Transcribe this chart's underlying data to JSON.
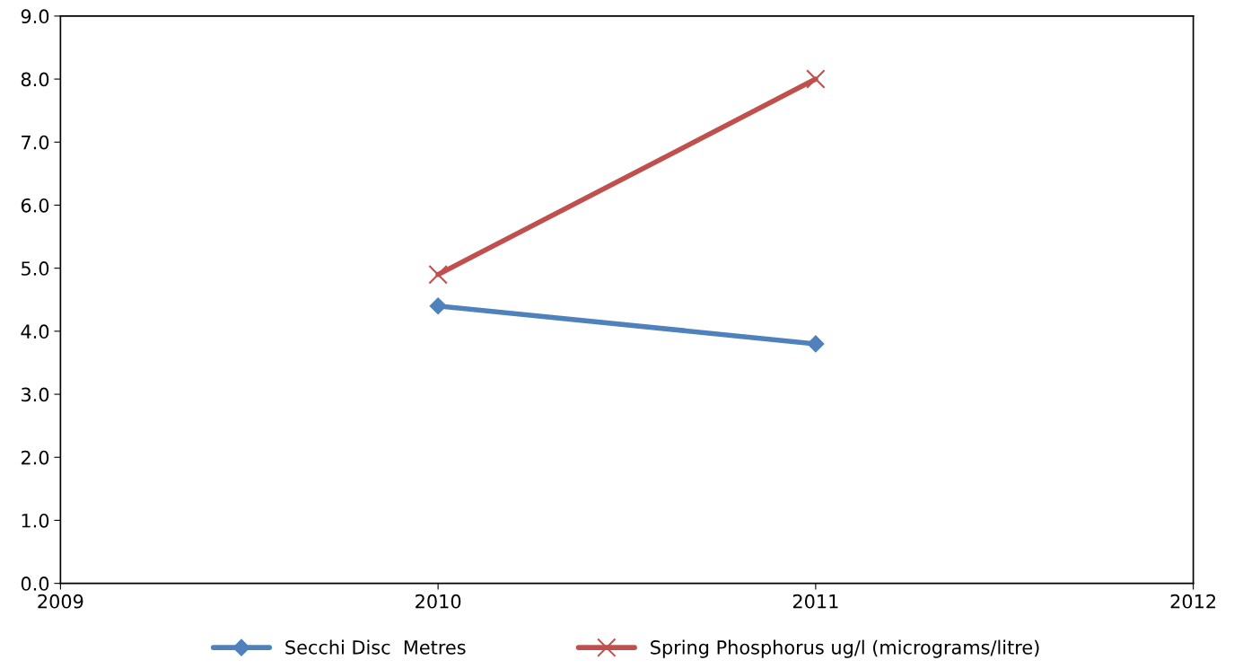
{
  "chart_data": {
    "type": "line",
    "x": [
      2010,
      2011
    ],
    "series": [
      {
        "name": "Secchi Disc  Metres",
        "color": "#4f81bd",
        "values": [
          4.4,
          3.8
        ],
        "marker": "diamond"
      },
      {
        "name": "Spring Phosphorus ug/l (micrograms/litre)",
        "color": "#c0504d",
        "values": [
          4.9,
          8.0
        ],
        "marker": "cross"
      }
    ],
    "xlim": [
      2009,
      2012
    ],
    "xticks": [
      2009,
      2010,
      2011,
      2012
    ],
    "ylim": [
      0,
      9
    ],
    "yticks": [
      {
        "value": 0,
        "label": "0.0"
      },
      {
        "value": 1,
        "label": "1.0"
      },
      {
        "value": 2,
        "label": "2.0"
      },
      {
        "value": 3,
        "label": "3.0"
      },
      {
        "value": 4,
        "label": "4.0"
      },
      {
        "value": 5,
        "label": "5.0"
      },
      {
        "value": 6,
        "label": "6.0"
      },
      {
        "value": 7,
        "label": "7.0"
      },
      {
        "value": 8,
        "label": "8.0"
      },
      {
        "value": 9,
        "label": "9.0"
      }
    ],
    "grid": false,
    "legend": "bottom",
    "line_style": "solid"
  }
}
